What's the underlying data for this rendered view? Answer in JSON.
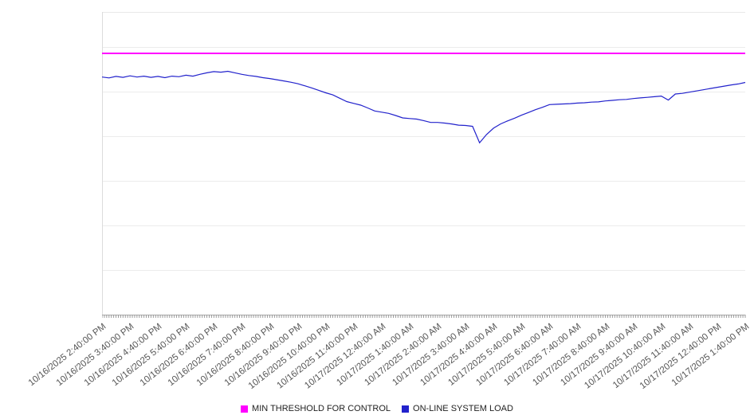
{
  "chart": {
    "background": "#ffffff",
    "gridline_color": "#ececec",
    "axis_color": "#aaaaaa",
    "tick_color": "#999999",
    "label_color": "#555555"
  },
  "chart_data": {
    "type": "line",
    "title": "",
    "xlabel": "",
    "ylabel": "",
    "ylim": [
      0,
      100
    ],
    "y_axis_labels_visible": false,
    "grid": "horizontal",
    "legend_position": "bottom-center",
    "x_span_hours": 23,
    "categories": [
      "10/16/2025 2:40:00 PM",
      "10/16/2025 3:40:00 PM",
      "10/16/2025 4:40:00 PM",
      "10/16/2025 5:40:00 PM",
      "10/16/2025 6:40:00 PM",
      "10/16/2025 7:40:00 PM",
      "10/16/2025 8:40:00 PM",
      "10/16/2025 9:40:00 PM",
      "10/16/2025 10:40:00 PM",
      "10/16/2025 11:40:00 PM",
      "10/17/2025 12:40:00 AM",
      "10/17/2025 1:40:00 AM",
      "10/17/2025 2:40:00 AM",
      "10/17/2025 3:40:00 AM",
      "10/17/2025 4:40:00 AM",
      "10/17/2025 5:40:00 AM",
      "10/17/2025 6:40:00 AM",
      "10/17/2025 7:40:00 AM",
      "10/17/2025 8:40:00 AM",
      "10/17/2025 9:40:00 AM",
      "10/17/2025 10:40:00 AM",
      "10/17/2025 11:40:00 AM",
      "10/17/2025 12:40:00 PM",
      "10/17/2025 1:40:00 PM"
    ],
    "series": [
      {
        "name": "MIN THRESHOLD FOR CONTROL",
        "type": "constant-line",
        "color": "#ff00ff",
        "value": 86.3
      },
      {
        "name": "ON-LINE SYSTEM LOAD",
        "type": "line",
        "color": "#2222cc",
        "start": "10/16/2025 2:40:00 PM",
        "interval_minutes": 15,
        "values": [
          78.5,
          78.2,
          78.7,
          78.4,
          78.9,
          78.5,
          78.8,
          78.4,
          78.7,
          78.3,
          78.8,
          78.6,
          79.1,
          78.8,
          79.4,
          79.9,
          80.3,
          80.1,
          80.4,
          79.9,
          79.4,
          79.0,
          78.7,
          78.3,
          78.0,
          77.6,
          77.2,
          76.8,
          76.3,
          75.6,
          74.9,
          74.1,
          73.3,
          72.6,
          71.5,
          70.4,
          69.8,
          69.2,
          68.3,
          67.3,
          66.9,
          66.5,
          65.8,
          65.0,
          64.8,
          64.6,
          64.1,
          63.5,
          63.5,
          63.3,
          63.0,
          62.6,
          62.5,
          62.2,
          56.8,
          59.5,
          61.6,
          63.0,
          64.0,
          64.9,
          65.9,
          66.8,
          67.7,
          68.5,
          69.4,
          69.5,
          69.6,
          69.7,
          69.9,
          70.0,
          70.2,
          70.3,
          70.6,
          70.8,
          71.0,
          71.1,
          71.4,
          71.6,
          71.8,
          72.0,
          72.2,
          70.9,
          72.9,
          73.1,
          73.5,
          73.9,
          74.3,
          74.7,
          75.1,
          75.5,
          75.9,
          76.2,
          76.7
        ]
      }
    ]
  }
}
